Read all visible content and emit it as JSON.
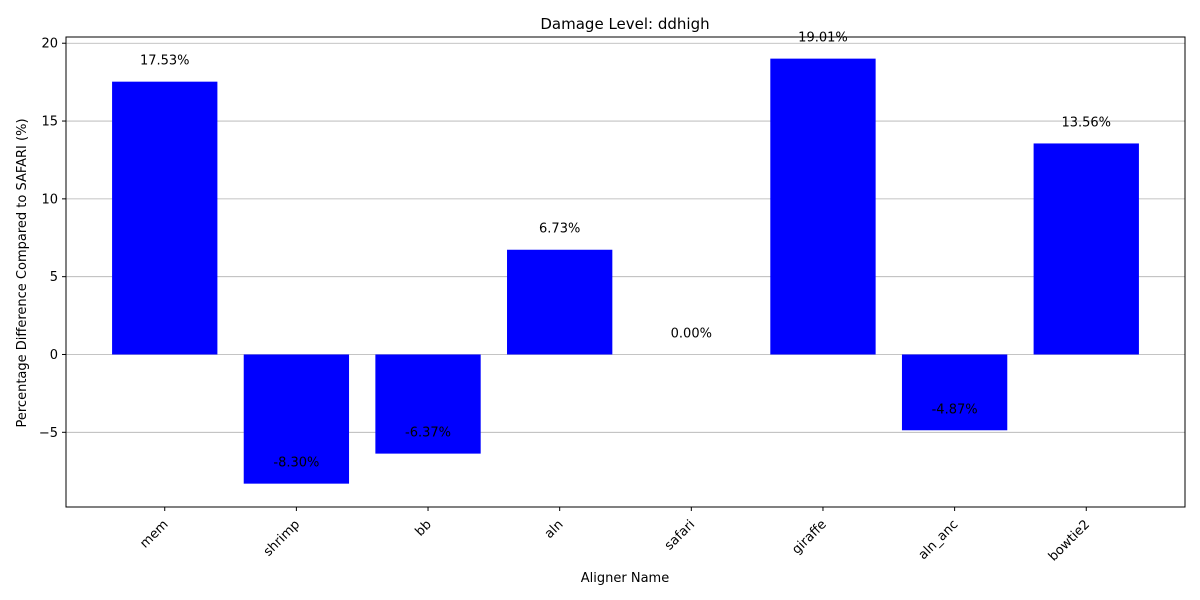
{
  "chart_data": {
    "type": "bar",
    "title": "Damage Level: ddhigh",
    "xlabel": "Aligner Name",
    "ylabel": "Percentage Difference Compared to SAFARI (%)",
    "categories": [
      "mem",
      "shrimp",
      "bb",
      "aln",
      "safari",
      "giraffe",
      "aln_anc",
      "bowtie2"
    ],
    "values": [
      17.53,
      -8.3,
      -6.37,
      6.73,
      0.0,
      19.01,
      -4.87,
      13.56
    ],
    "value_labels": [
      "17.53%",
      "-8.30%",
      "-6.37%",
      "6.73%",
      "0.00%",
      "19.01%",
      "-4.87%",
      "13.56%"
    ],
    "ylim": [
      -9.8,
      20.4
    ],
    "yticks": [
      -5,
      0,
      5,
      10,
      15,
      20
    ],
    "ytick_labels": [
      "−5",
      "0",
      "5",
      "10",
      "15",
      "20"
    ],
    "grid": "y",
    "bar_color": "#0000ff"
  }
}
